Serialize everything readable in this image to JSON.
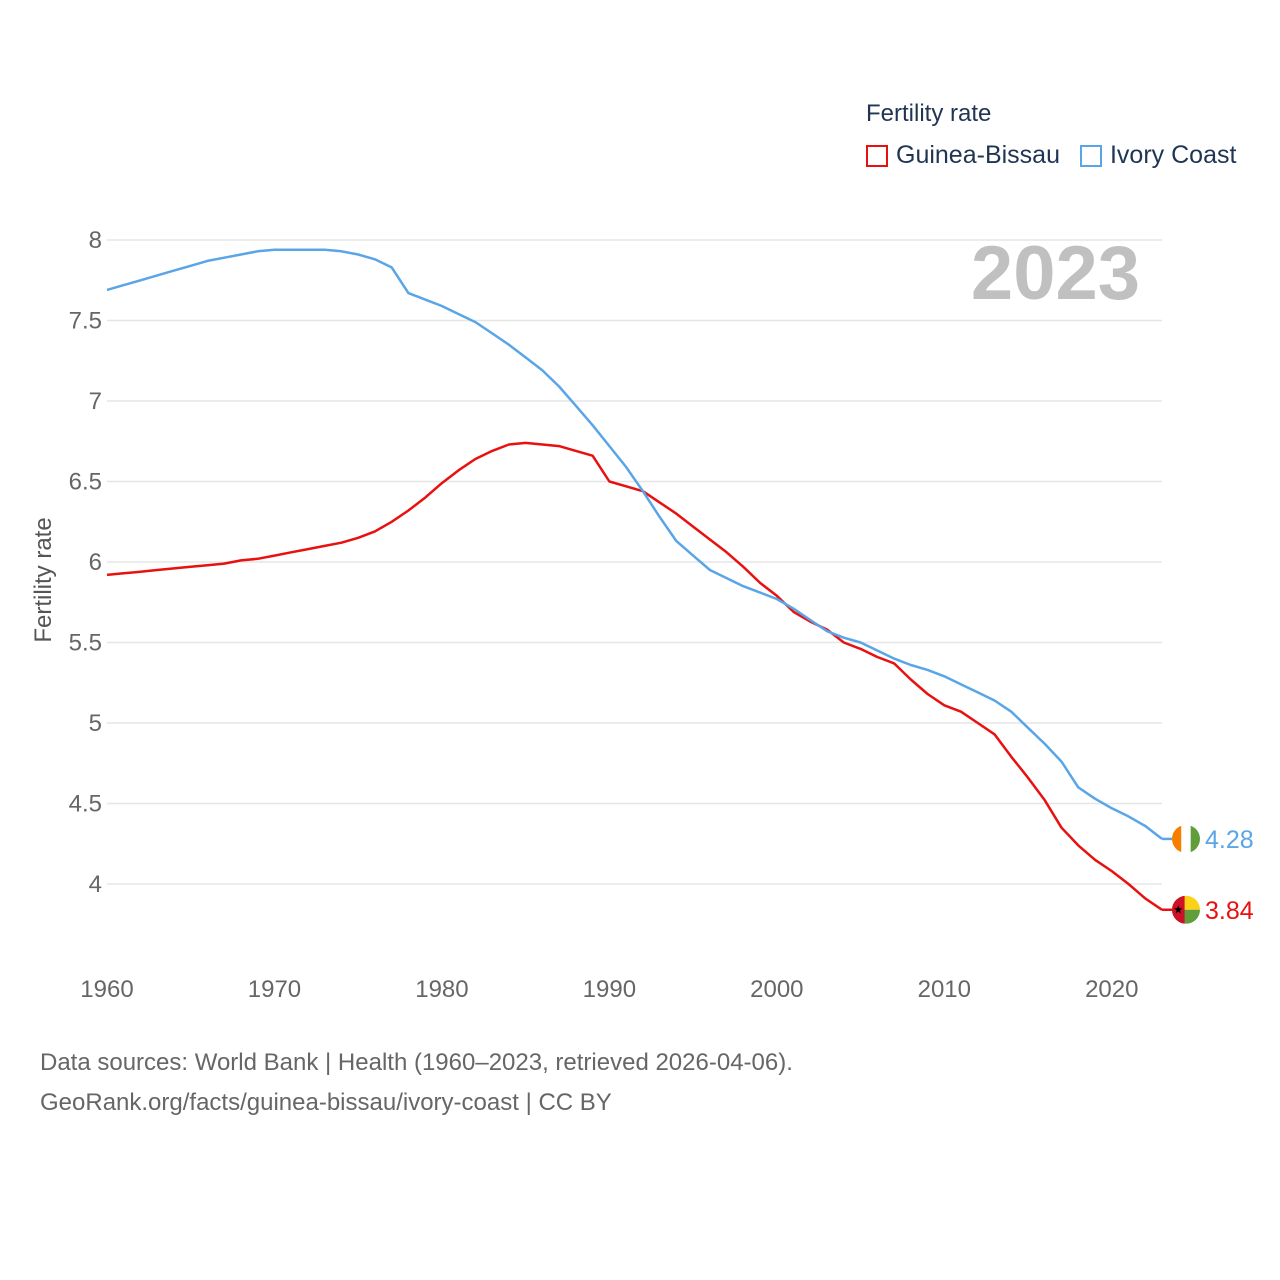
{
  "legend": {
    "title": "Fertility rate"
  },
  "sources": {
    "line1": "Data sources: World Bank | Health (1960–2023, retrieved 2026-04-06).",
    "line2": "GeoRank.org/facts/guinea-bissau/ivory-coast | CC BY"
  },
  "chart_data": {
    "type": "line",
    "title": "",
    "xlabel": "",
    "ylabel": "Fertility rate",
    "year_label": "2023",
    "xlim": [
      1960,
      2023
    ],
    "ylim": [
      3.5,
      8.15
    ],
    "x_ticks": [
      1960,
      1970,
      1980,
      1990,
      2000,
      2010,
      2020
    ],
    "y_ticks": [
      4,
      4.5,
      5,
      5.5,
      6,
      6.5,
      7,
      7.5,
      8
    ],
    "y_tick_labels": [
      "4",
      "4.5",
      "5",
      "5.5",
      "6",
      "6.5",
      "7",
      "7.5",
      "8"
    ],
    "legend_position": "top-right",
    "grid": true,
    "x": [
      1960,
      1961,
      1962,
      1963,
      1964,
      1965,
      1966,
      1967,
      1968,
      1969,
      1970,
      1971,
      1972,
      1973,
      1974,
      1975,
      1976,
      1977,
      1978,
      1979,
      1980,
      1981,
      1982,
      1983,
      1984,
      1985,
      1986,
      1987,
      1988,
      1989,
      1990,
      1991,
      1992,
      1993,
      1994,
      1995,
      1996,
      1997,
      1998,
      1999,
      2000,
      2001,
      2002,
      2003,
      2004,
      2005,
      2006,
      2007,
      2008,
      2009,
      2010,
      2011,
      2012,
      2013,
      2014,
      2015,
      2016,
      2017,
      2018,
      2019,
      2020,
      2021,
      2022,
      2023
    ],
    "series": [
      {
        "name": "Guinea-Bissau",
        "color": "#e8110f",
        "end_label": "3.84",
        "flag": "guinea-bissau-flag",
        "values": [
          5.92,
          5.93,
          5.94,
          5.95,
          5.96,
          5.97,
          5.98,
          5.99,
          6.01,
          6.02,
          6.04,
          6.06,
          6.08,
          6.1,
          6.12,
          6.15,
          6.19,
          6.25,
          6.32,
          6.4,
          6.49,
          6.57,
          6.64,
          6.69,
          6.73,
          6.74,
          6.73,
          6.72,
          6.69,
          6.66,
          6.5,
          6.47,
          6.44,
          6.37,
          6.3,
          6.22,
          6.14,
          6.06,
          5.97,
          5.87,
          5.79,
          5.69,
          5.63,
          5.58,
          5.5,
          5.46,
          5.41,
          5.37,
          5.27,
          5.18,
          5.11,
          5.07,
          5.0,
          4.93,
          4.79,
          4.66,
          4.52,
          4.35,
          4.24,
          4.15,
          4.08,
          4.0,
          3.91,
          3.84
        ]
      },
      {
        "name": "Ivory Coast",
        "color": "#5aa5e8",
        "end_label": "4.28",
        "flag": "ivory-coast-flag",
        "values": [
          7.69,
          7.72,
          7.75,
          7.78,
          7.81,
          7.84,
          7.87,
          7.89,
          7.91,
          7.93,
          7.94,
          7.94,
          7.94,
          7.94,
          7.93,
          7.91,
          7.88,
          7.83,
          7.67,
          7.63,
          7.59,
          7.54,
          7.49,
          7.42,
          7.35,
          7.27,
          7.19,
          7.09,
          6.97,
          6.85,
          6.72,
          6.59,
          6.44,
          6.28,
          6.13,
          6.04,
          5.95,
          5.9,
          5.85,
          5.81,
          5.77,
          5.71,
          5.64,
          5.57,
          5.53,
          5.5,
          5.45,
          5.4,
          5.36,
          5.33,
          5.29,
          5.24,
          5.19,
          5.14,
          5.07,
          4.97,
          4.87,
          4.76,
          4.6,
          4.53,
          4.47,
          4.42,
          4.36,
          4.28
        ]
      }
    ]
  }
}
